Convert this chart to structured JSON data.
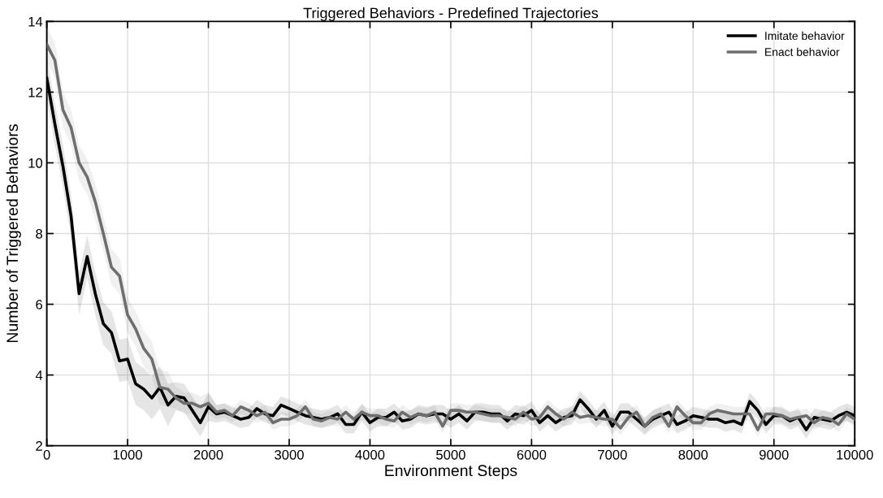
{
  "chart_data": {
    "type": "line",
    "title": "Triggered Behaviors - Predefined Trajectories",
    "xlabel": "Environment Steps",
    "ylabel": "Number of Triggered Behaviors",
    "x": [
      0,
      100,
      200,
      300,
      400,
      500,
      600,
      700,
      800,
      900,
      1000,
      1100,
      1200,
      1300,
      1400,
      1500,
      1600,
      1700,
      1800,
      1900,
      2000,
      2100,
      2200,
      2300,
      2400,
      2500,
      2600,
      2700,
      2800,
      2900,
      3000,
      3100,
      3200,
      3300,
      3400,
      3500,
      3600,
      3700,
      3800,
      3900,
      4000,
      4100,
      4200,
      4300,
      4400,
      4500,
      4600,
      4700,
      4800,
      4900,
      5000,
      5100,
      5200,
      5300,
      5400,
      5500,
      5600,
      5700,
      5800,
      5900,
      6000,
      6100,
      6200,
      6300,
      6400,
      6500,
      6600,
      6700,
      6800,
      6900,
      7000,
      7100,
      7200,
      7300,
      7400,
      7500,
      7600,
      7700,
      7800,
      7900,
      8000,
      8100,
      8200,
      8300,
      8400,
      8500,
      8600,
      8700,
      8800,
      8900,
      9000,
      9100,
      9200,
      9300,
      9400,
      9500,
      9600,
      9700,
      9800,
      9900,
      10000
    ],
    "series": [
      {
        "name": "Imitate behavior",
        "color": "#000000",
        "values": [
          12.4,
          11.1,
          9.9,
          8.5,
          6.3,
          7.35,
          6.3,
          5.45,
          5.2,
          4.4,
          4.45,
          3.75,
          3.6,
          3.35,
          3.65,
          3.15,
          3.4,
          3.35,
          3.0,
          2.65,
          3.1,
          2.9,
          2.95,
          2.85,
          2.75,
          2.8,
          3.05,
          2.9,
          2.85,
          3.15,
          3.05,
          2.95,
          2.85,
          2.8,
          2.75,
          2.8,
          2.9,
          2.6,
          2.6,
          2.95,
          2.65,
          2.8,
          2.8,
          2.95,
          2.7,
          2.75,
          2.9,
          2.85,
          2.9,
          2.9,
          2.75,
          2.9,
          2.7,
          2.95,
          2.95,
          2.9,
          2.9,
          2.7,
          2.9,
          2.85,
          3.0,
          2.65,
          2.85,
          2.65,
          2.8,
          2.85,
          3.3,
          3.05,
          2.75,
          3.0,
          2.55,
          2.95,
          2.95,
          2.75,
          2.55,
          2.75,
          2.85,
          2.95,
          2.6,
          2.7,
          2.85,
          2.8,
          2.75,
          2.75,
          2.65,
          2.7,
          2.6,
          3.25,
          3.0,
          2.6,
          2.85,
          2.85,
          2.7,
          2.8,
          2.45,
          2.8,
          2.75,
          2.7,
          2.85,
          2.95,
          2.85
        ],
        "lower": [
          11.8,
          10.5,
          9.3,
          7.9,
          5.7,
          6.75,
          5.7,
          4.85,
          4.6,
          3.8,
          3.85,
          3.15,
          3.0,
          2.75,
          3.05,
          2.55,
          3.0,
          2.95,
          2.6,
          2.25,
          2.7,
          2.65,
          2.7,
          2.6,
          2.5,
          2.55,
          2.8,
          2.65,
          2.6,
          2.9,
          2.8,
          2.7,
          2.6,
          2.55,
          2.5,
          2.55,
          2.65,
          2.35,
          2.35,
          2.7,
          2.4,
          2.55,
          2.55,
          2.7,
          2.45,
          2.5,
          2.65,
          2.6,
          2.65,
          2.65,
          2.5,
          2.65,
          2.45,
          2.7,
          2.7,
          2.65,
          2.65,
          2.45,
          2.65,
          2.6,
          2.75,
          2.4,
          2.6,
          2.4,
          2.55,
          2.6,
          3.05,
          2.8,
          2.5,
          2.75,
          2.3,
          2.7,
          2.7,
          2.5,
          2.3,
          2.5,
          2.6,
          2.7,
          2.35,
          2.45,
          2.6,
          2.55,
          2.5,
          2.5,
          2.4,
          2.45,
          2.35,
          3.0,
          2.75,
          2.35,
          2.6,
          2.6,
          2.45,
          2.55,
          2.2,
          2.55,
          2.5,
          2.45,
          2.6,
          2.7,
          2.6
        ],
        "upper": [
          13.0,
          11.7,
          10.5,
          9.1,
          6.9,
          7.95,
          6.9,
          6.05,
          5.8,
          5.0,
          5.05,
          4.35,
          4.2,
          3.95,
          4.25,
          3.75,
          3.8,
          3.75,
          3.4,
          3.05,
          3.5,
          3.15,
          3.2,
          3.1,
          3.0,
          3.05,
          3.3,
          3.15,
          3.1,
          3.4,
          3.3,
          3.2,
          3.1,
          3.05,
          3.0,
          3.05,
          3.15,
          2.85,
          2.85,
          3.2,
          2.9,
          3.05,
          3.05,
          3.2,
          2.95,
          3.0,
          3.15,
          3.1,
          3.15,
          3.15,
          3.0,
          3.15,
          2.95,
          3.2,
          3.2,
          3.15,
          3.15,
          2.95,
          3.15,
          3.1,
          3.25,
          2.9,
          3.1,
          2.9,
          3.05,
          3.1,
          3.55,
          3.3,
          3.0,
          3.25,
          2.8,
          3.2,
          3.2,
          3.0,
          2.8,
          3.0,
          3.1,
          3.2,
          2.85,
          2.95,
          3.1,
          3.05,
          3.0,
          3.0,
          2.9,
          2.95,
          2.85,
          3.5,
          3.25,
          2.85,
          3.1,
          3.1,
          2.95,
          3.05,
          2.7,
          3.05,
          3.0,
          2.95,
          3.1,
          3.2,
          3.1
        ]
      },
      {
        "name": "Enact behavior",
        "color": "#6e6e6e",
        "values": [
          13.35,
          12.9,
          11.5,
          11.0,
          10.0,
          9.6,
          8.9,
          8.0,
          7.05,
          6.8,
          5.7,
          5.3,
          4.75,
          4.45,
          3.65,
          3.6,
          3.35,
          3.2,
          3.2,
          3.1,
          3.2,
          2.95,
          3.0,
          2.85,
          3.1,
          3.0,
          2.85,
          2.95,
          2.65,
          2.75,
          2.75,
          2.85,
          3.1,
          2.75,
          2.7,
          2.8,
          2.75,
          2.95,
          2.75,
          2.95,
          2.85,
          2.85,
          2.75,
          2.7,
          2.95,
          2.8,
          2.9,
          2.85,
          2.95,
          2.55,
          3.0,
          3.0,
          2.95,
          2.95,
          2.9,
          2.85,
          2.85,
          2.8,
          2.75,
          2.95,
          2.75,
          2.8,
          3.1,
          2.9,
          2.75,
          2.95,
          2.8,
          2.85,
          2.8,
          2.75,
          2.75,
          2.5,
          2.8,
          2.95,
          2.55,
          2.8,
          2.9,
          2.55,
          3.1,
          2.85,
          2.65,
          2.65,
          2.9,
          3.0,
          2.95,
          2.9,
          2.9,
          2.9,
          2.45,
          2.9,
          2.9,
          2.85,
          2.75,
          2.8,
          2.85,
          2.65,
          2.8,
          2.75,
          2.6,
          2.9,
          2.75
        ],
        "lower": [
          12.85,
          12.4,
          11.0,
          10.5,
          9.5,
          9.1,
          8.4,
          7.5,
          6.55,
          6.3,
          5.2,
          4.8,
          4.25,
          3.95,
          3.15,
          3.1,
          3.05,
          2.9,
          2.9,
          2.8,
          2.9,
          2.75,
          2.8,
          2.65,
          2.9,
          2.8,
          2.65,
          2.75,
          2.45,
          2.55,
          2.55,
          2.65,
          2.9,
          2.55,
          2.5,
          2.6,
          2.55,
          2.75,
          2.55,
          2.75,
          2.65,
          2.65,
          2.55,
          2.5,
          2.75,
          2.6,
          2.7,
          2.65,
          2.75,
          2.35,
          2.8,
          2.8,
          2.75,
          2.75,
          2.7,
          2.65,
          2.65,
          2.6,
          2.55,
          2.75,
          2.55,
          2.6,
          2.9,
          2.7,
          2.55,
          2.75,
          2.6,
          2.65,
          2.6,
          2.55,
          2.55,
          2.3,
          2.6,
          2.75,
          2.35,
          2.6,
          2.7,
          2.35,
          2.9,
          2.65,
          2.45,
          2.45,
          2.7,
          2.8,
          2.75,
          2.7,
          2.7,
          2.7,
          2.25,
          2.7,
          2.7,
          2.65,
          2.55,
          2.6,
          2.65,
          2.45,
          2.6,
          2.55,
          2.4,
          2.7,
          2.55
        ],
        "upper": [
          13.85,
          13.4,
          12.0,
          11.5,
          10.5,
          10.1,
          9.4,
          8.5,
          7.55,
          7.3,
          6.2,
          5.8,
          5.25,
          4.95,
          4.15,
          4.1,
          3.65,
          3.5,
          3.5,
          3.4,
          3.5,
          3.15,
          3.2,
          3.05,
          3.3,
          3.2,
          3.05,
          3.15,
          2.85,
          2.95,
          2.95,
          3.05,
          3.3,
          2.95,
          2.9,
          3.0,
          2.95,
          3.15,
          2.95,
          3.15,
          3.05,
          3.05,
          2.95,
          2.9,
          3.15,
          3.0,
          3.1,
          3.05,
          3.15,
          2.75,
          3.2,
          3.2,
          3.15,
          3.15,
          3.1,
          3.05,
          3.05,
          3.0,
          2.95,
          3.15,
          2.95,
          3.0,
          3.3,
          3.1,
          2.95,
          3.15,
          3.0,
          3.05,
          3.0,
          2.95,
          2.95,
          2.7,
          3.0,
          3.15,
          2.75,
          3.0,
          3.1,
          2.75,
          3.3,
          3.05,
          2.85,
          2.85,
          3.1,
          3.2,
          3.15,
          3.1,
          3.1,
          3.1,
          2.65,
          3.1,
          3.1,
          3.05,
          2.95,
          3.0,
          3.05,
          2.85,
          3.0,
          2.95,
          2.8,
          3.1,
          2.95
        ]
      }
    ],
    "xlim": [
      0,
      10000
    ],
    "xticks": [
      0,
      1000,
      2000,
      3000,
      4000,
      5000,
      6000,
      7000,
      8000,
      9000,
      10000
    ],
    "ylim": [
      2,
      14
    ],
    "yticks": [
      2,
      4,
      6,
      8,
      10,
      12,
      14
    ],
    "grid": true,
    "legend": "top right",
    "line_style": "solid",
    "marker": "none"
  }
}
